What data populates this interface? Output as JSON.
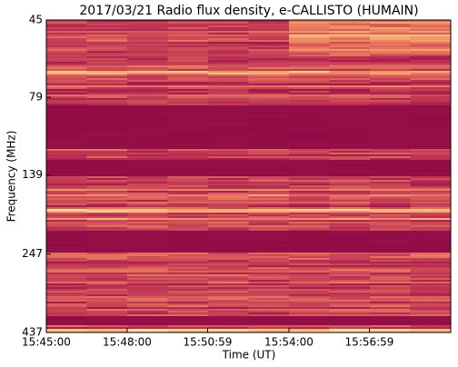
{
  "chart_data": {
    "type": "spectrogram",
    "title": "2017/03/21  Radio flux density, e-CALLISTO (HUMAIN)",
    "x_label": "Time (UT)",
    "y_label": "Frequency (MHz)",
    "xlim": [
      "15:45:00",
      "16:00:00"
    ],
    "xticks": [
      "15:45:00",
      "15:48:00",
      "15:50:59",
      "15:54:00",
      "15:56:59"
    ],
    "ylim": [
      45,
      437
    ],
    "yticks": [
      45,
      79,
      139,
      247,
      437
    ],
    "log_scale": true,
    "y_inverted": true
  }
}
